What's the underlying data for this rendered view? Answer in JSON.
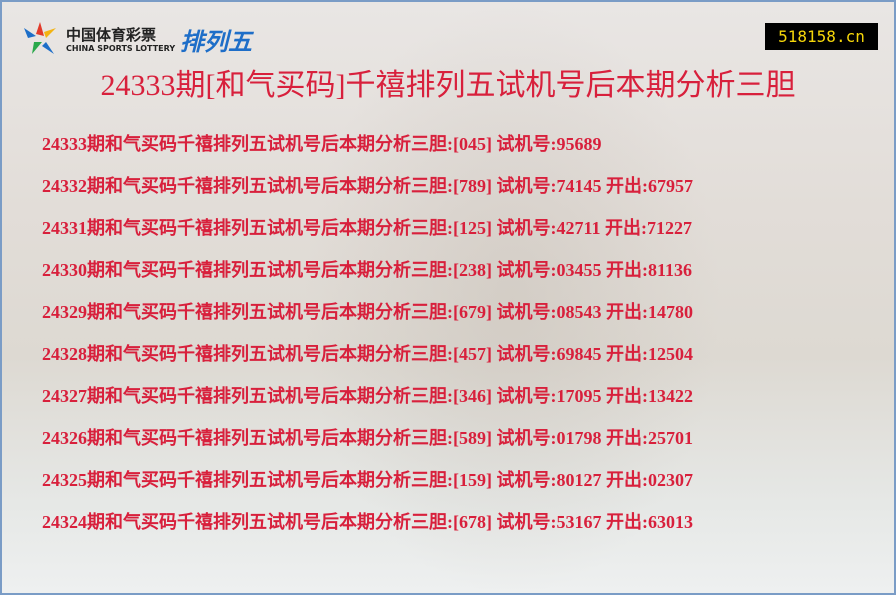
{
  "header": {
    "logo_cn": "中国体育彩票",
    "logo_en": "CHINA SPORTS LOTTERY",
    "logo_game": "排列五",
    "site": "518158.cn",
    "title": "24333期[和气买码]千禧排列五试机号后本期分析三胆"
  },
  "rows": [
    "24333期和气买码千禧排列五试机号后本期分析三胆:[045] 试机号:95689",
    "24332期和气买码千禧排列五试机号后本期分析三胆:[789] 试机号:74145 开出:67957",
    "24331期和气买码千禧排列五试机号后本期分析三胆:[125] 试机号:42711 开出:71227",
    "24330期和气买码千禧排列五试机号后本期分析三胆:[238] 试机号:03455 开出:81136",
    "24329期和气买码千禧排列五试机号后本期分析三胆:[679] 试机号:08543 开出:14780",
    "24328期和气买码千禧排列五试机号后本期分析三胆:[457] 试机号:69845 开出:12504",
    "24327期和气买码千禧排列五试机号后本期分析三胆:[346] 试机号:17095 开出:13422",
    "24326期和气买码千禧排列五试机号后本期分析三胆:[589] 试机号:01798 开出:25701",
    "24325期和气买码千禧排列五试机号后本期分析三胆:[159] 试机号:80127 开出:02307",
    "24324期和气买码千禧排列五试机号后本期分析三胆:[678] 试机号:53167 开出:63013"
  ]
}
